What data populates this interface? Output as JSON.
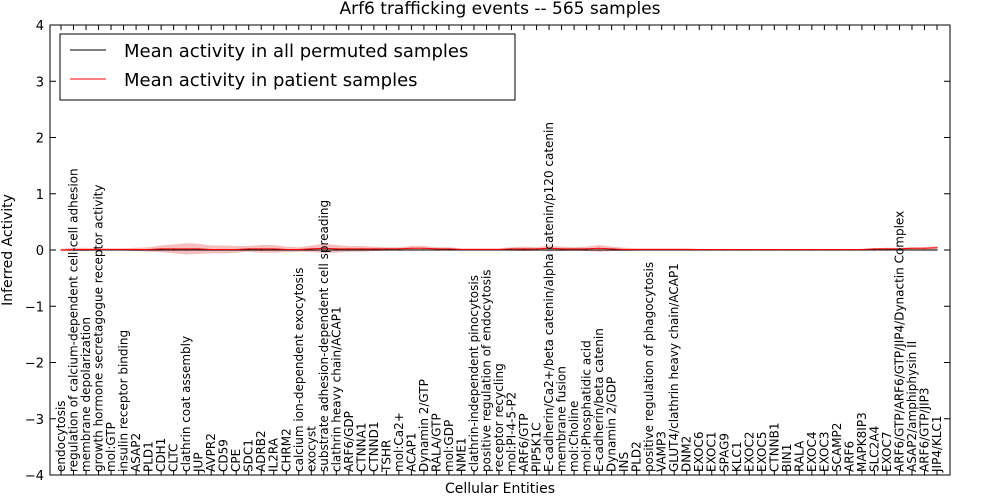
{
  "chart_data": {
    "type": "line",
    "title": "Arf6 trafficking events -- 565 samples",
    "xlabel": "Cellular Entities",
    "ylabel": "Inferred Activity",
    "ylim": [
      -4,
      4
    ],
    "yticks": [
      "−4",
      "−3",
      "−2",
      "−1",
      "0",
      "1",
      "2",
      "3",
      "4"
    ],
    "ytick_values": [
      -4,
      -3,
      -2,
      -1,
      0,
      1,
      2,
      3,
      4
    ],
    "legend_position": "top-left",
    "categories": [
      "endocytosis",
      "regulation of calcium-dependent cell-cell adhesion",
      "membrane depolarization",
      "growth hormone secretagogue receptor activity",
      "mol:GTP",
      "insulin receptor binding",
      "ASAP2",
      "PLD1",
      "CDH1",
      "CLTC",
      "clathrin coat assembly",
      "JUP",
      "AVPR2",
      "CD59",
      "CPE",
      "SDC1",
      "ADRB2",
      "IL2RA",
      "CHRM2",
      "calcium ion-dependent exocytosis",
      "exocyst",
      "substrate adhesion-dependent cell spreading",
      "clathrin heavy chain/ACAP1",
      "ARF6/GDP",
      "CTNNA1",
      "CTNND1",
      "TSHR",
      "mol:Ca2+",
      "ACAP1",
      "Dynamin 2/GTP",
      "RALA/GTP",
      "mol:GDP",
      "NME1",
      "clathrin-independent pinocytosis",
      "positive regulation of endocytosis",
      "receptor recycling",
      "mol:PI-4-5-P2",
      "ARF6/GTP",
      "PIP5K1C",
      "E-cadherin/Ca2+/beta catenin/alpha catenin/p120 catenin",
      "membrane fusion",
      "mol:Choline",
      "mol:Phosphatidic acid",
      "E-cadherin/beta catenin",
      "Dynamin 2/GDP",
      "INS",
      "PLD2",
      "positive regulation of phagocytosis",
      "VAMP3",
      "GLUT4/clathrin heavy chain/ACAP1",
      "DNM2",
      "EXOC6",
      "EXOC1",
      "SPAG9",
      "KLC1",
      "EXOC2",
      "EXOC5",
      "CTNNB1",
      "BIN1",
      "RALA",
      "EXOC4",
      "EXOC3",
      "SCAMP2",
      "ARF6",
      "MAPK8IP3",
      "SLC2A4",
      "EXOC7",
      "ARF6/GTP/ARF6/GTP/JIP4/Dynactin Complex",
      "ASAP2/amphiphysin II",
      "ARF6/GTP/JIP3",
      "JIP4/KLC1"
    ],
    "series": [
      {
        "name": "Mean activity in all permuted samples",
        "color": "#000000",
        "values": [
          0.0,
          0.0,
          0.0,
          0.0,
          0.0,
          0.0,
          0.0,
          0.0,
          0.0,
          0.0,
          0.0,
          0.0,
          0.0,
          0.0,
          0.0,
          0.0,
          0.0,
          0.0,
          0.0,
          0.0,
          0.0,
          0.0,
          0.0,
          0.0,
          0.0,
          0.0,
          0.0,
          0.0,
          0.0,
          0.0,
          0.0,
          0.0,
          0.0,
          0.0,
          0.0,
          0.0,
          0.0,
          0.0,
          0.0,
          0.0,
          0.0,
          0.0,
          0.0,
          0.0,
          0.0,
          0.0,
          0.0,
          0.0,
          0.0,
          0.0,
          0.0,
          0.0,
          0.0,
          0.0,
          0.0,
          0.0,
          0.0,
          0.0,
          0.0,
          0.0,
          0.0,
          0.0,
          0.0,
          0.0,
          0.0,
          0.0,
          0.0,
          0.0,
          0.0,
          0.0,
          0.0
        ]
      },
      {
        "name": "Mean activity in patient samples",
        "color": "#ff0000",
        "band_color": "#ee8a8a",
        "values": [
          0.0,
          0.01,
          0.01,
          0.01,
          0.01,
          0.01,
          0.01,
          0.01,
          0.02,
          0.02,
          0.02,
          0.02,
          0.01,
          0.01,
          0.01,
          0.02,
          0.02,
          0.02,
          0.01,
          0.01,
          0.02,
          0.03,
          0.02,
          0.02,
          0.02,
          0.02,
          0.02,
          0.02,
          0.03,
          0.03,
          0.02,
          0.02,
          0.01,
          0.01,
          0.01,
          0.01,
          0.02,
          0.02,
          0.02,
          0.03,
          0.02,
          0.02,
          0.02,
          0.03,
          0.02,
          0.01,
          0.01,
          0.01,
          0.01,
          0.01,
          0.01,
          0.01,
          0.01,
          0.01,
          0.01,
          0.01,
          0.01,
          0.01,
          0.01,
          0.01,
          0.01,
          0.01,
          0.01,
          0.01,
          0.01,
          0.02,
          0.02,
          0.02,
          0.03,
          0.03,
          0.04
        ],
        "band_halfwidth": [
          0.02,
          0.03,
          0.03,
          0.02,
          0.02,
          0.02,
          0.03,
          0.04,
          0.06,
          0.08,
          0.1,
          0.09,
          0.07,
          0.07,
          0.06,
          0.05,
          0.07,
          0.07,
          0.05,
          0.04,
          0.06,
          0.08,
          0.07,
          0.05,
          0.05,
          0.04,
          0.03,
          0.03,
          0.04,
          0.04,
          0.03,
          0.03,
          0.02,
          0.02,
          0.02,
          0.02,
          0.03,
          0.04,
          0.03,
          0.05,
          0.04,
          0.03,
          0.04,
          0.06,
          0.04,
          0.03,
          0.02,
          0.02,
          0.02,
          0.02,
          0.02,
          0.01,
          0.01,
          0.01,
          0.01,
          0.01,
          0.01,
          0.01,
          0.01,
          0.01,
          0.01,
          0.01,
          0.01,
          0.01,
          0.01,
          0.01,
          0.02,
          0.02,
          0.02,
          0.02,
          0.03
        ]
      }
    ]
  }
}
